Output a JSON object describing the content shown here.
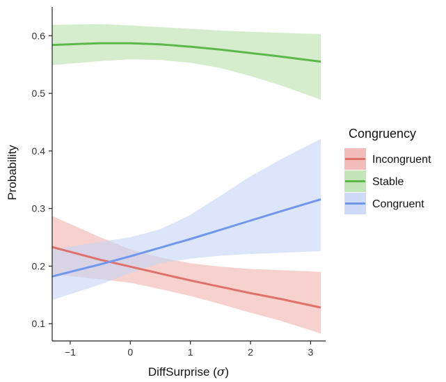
{
  "chart_data": {
    "type": "line",
    "title": "",
    "xlabel_prefix": "DiffSurprise (",
    "xlabel_sigma": "σ",
    "xlabel_suffix": ")",
    "ylabel": "Probability",
    "xlim": [
      -1.3,
      3.25
    ],
    "ylim": [
      0.07,
      0.65
    ],
    "xticks": [
      -1,
      0,
      1,
      2,
      3
    ],
    "yticks": [
      0.1,
      0.2,
      0.3,
      0.4,
      0.5,
      0.6
    ],
    "grid": false,
    "legend": {
      "title": "Congruency",
      "position": "right"
    },
    "series": [
      {
        "name": "Incongruent",
        "color": "#e0706a",
        "fill": "#f0b2ae",
        "x": [
          -1.3,
          -0.5,
          0.0,
          0.5,
          1.0,
          1.5,
          2.0,
          2.5,
          3.17
        ],
        "y": [
          0.233,
          0.211,
          0.199,
          0.187,
          0.175,
          0.164,
          0.153,
          0.143,
          0.128
        ],
        "lower": [
          0.186,
          0.177,
          0.171,
          0.16,
          0.148,
          0.134,
          0.119,
          0.105,
          0.083
        ],
        "upper": [
          0.287,
          0.25,
          0.229,
          0.215,
          0.205,
          0.199,
          0.195,
          0.193,
          0.19
        ]
      },
      {
        "name": "Stable",
        "color": "#5bb94a",
        "fill": "#b9e0ab",
        "x": [
          -1.3,
          -0.5,
          0.0,
          0.5,
          1.0,
          1.5,
          2.0,
          2.5,
          3.17
        ],
        "y": [
          0.584,
          0.587,
          0.587,
          0.585,
          0.581,
          0.576,
          0.57,
          0.564,
          0.555
        ],
        "lower": [
          0.549,
          0.556,
          0.559,
          0.558,
          0.553,
          0.544,
          0.53,
          0.514,
          0.489
        ],
        "upper": [
          0.619,
          0.62,
          0.618,
          0.615,
          0.612,
          0.609,
          0.607,
          0.605,
          0.603
        ]
      },
      {
        "name": "Congruent",
        "color": "#6f97ee",
        "fill": "#c6d4f7",
        "x": [
          -1.3,
          -0.5,
          0.0,
          0.5,
          1.0,
          1.5,
          2.0,
          2.5,
          3.17
        ],
        "y": [
          0.182,
          0.203,
          0.217,
          0.232,
          0.247,
          0.263,
          0.279,
          0.295,
          0.316
        ],
        "lower": [
          0.141,
          0.168,
          0.188,
          0.205,
          0.213,
          0.218,
          0.221,
          0.223,
          0.226
        ],
        "upper": [
          0.229,
          0.242,
          0.25,
          0.264,
          0.289,
          0.322,
          0.356,
          0.385,
          0.421
        ]
      }
    ]
  }
}
